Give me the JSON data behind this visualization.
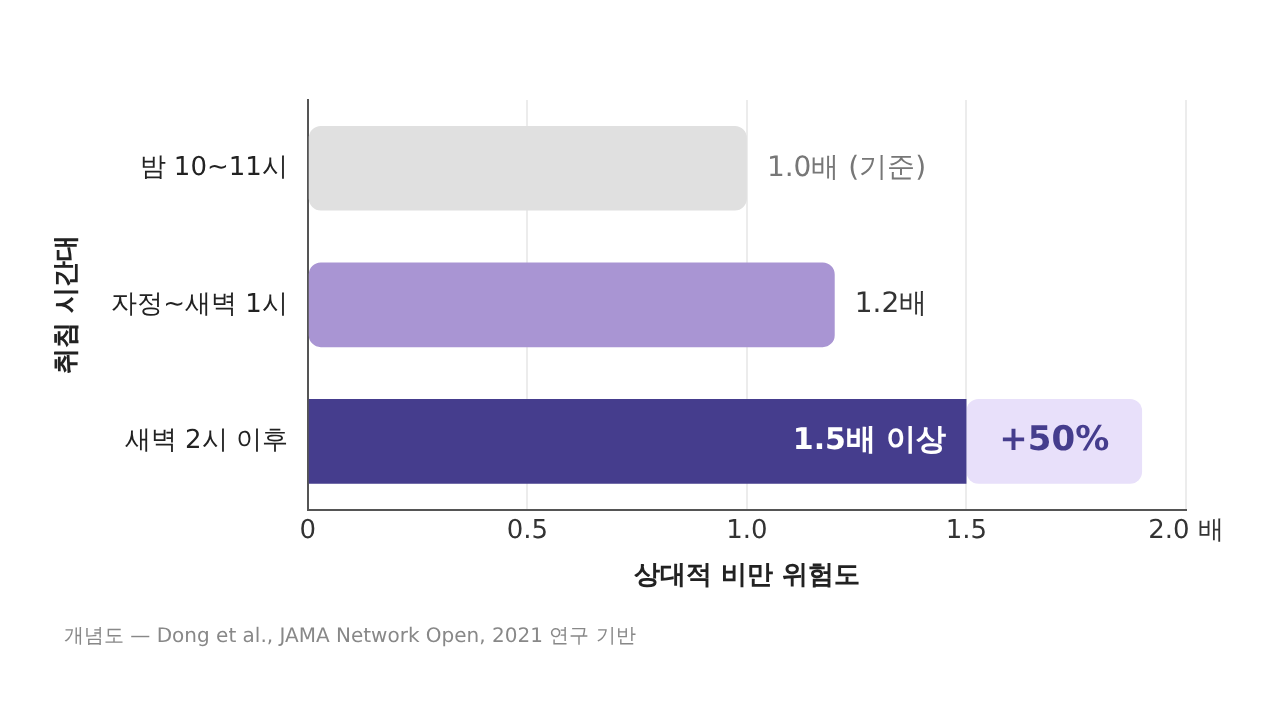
{
  "chart_data": {
    "type": "bar",
    "orientation": "horizontal",
    "stacked": true,
    "ylabel": "취침 시간대",
    "xlabel": "상대적 비만 위험도",
    "categories": [
      "밤 10~11시",
      "자정~새벽 1시",
      "새벽 2시 이후"
    ],
    "series": [
      {
        "colors": [
          "#e0e0e0",
          "#a995d3",
          "#453d8d"
        ],
        "values": [
          1.0,
          1.2,
          1.5
        ],
        "value_labels": [
          "1.0배 (기준)",
          "1.2배",
          "1.5배 이상"
        ]
      },
      {
        "color": "#e8e0fa",
        "values": [
          null,
          null,
          0.4
        ]
      }
    ],
    "xlim": [
      0,
      2
    ],
    "xticks": [
      0,
      0.5,
      {
        "value": 1,
        "label": "1.0"
      },
      1.5,
      {
        "value": 2,
        "label": "2.0 배"
      }
    ],
    "grid": "x",
    "legend": false,
    "annotations": [
      "+50%",
      "개념도 — Dong et al., JAMA Network Open, 2021 연구 기반"
    ]
  }
}
